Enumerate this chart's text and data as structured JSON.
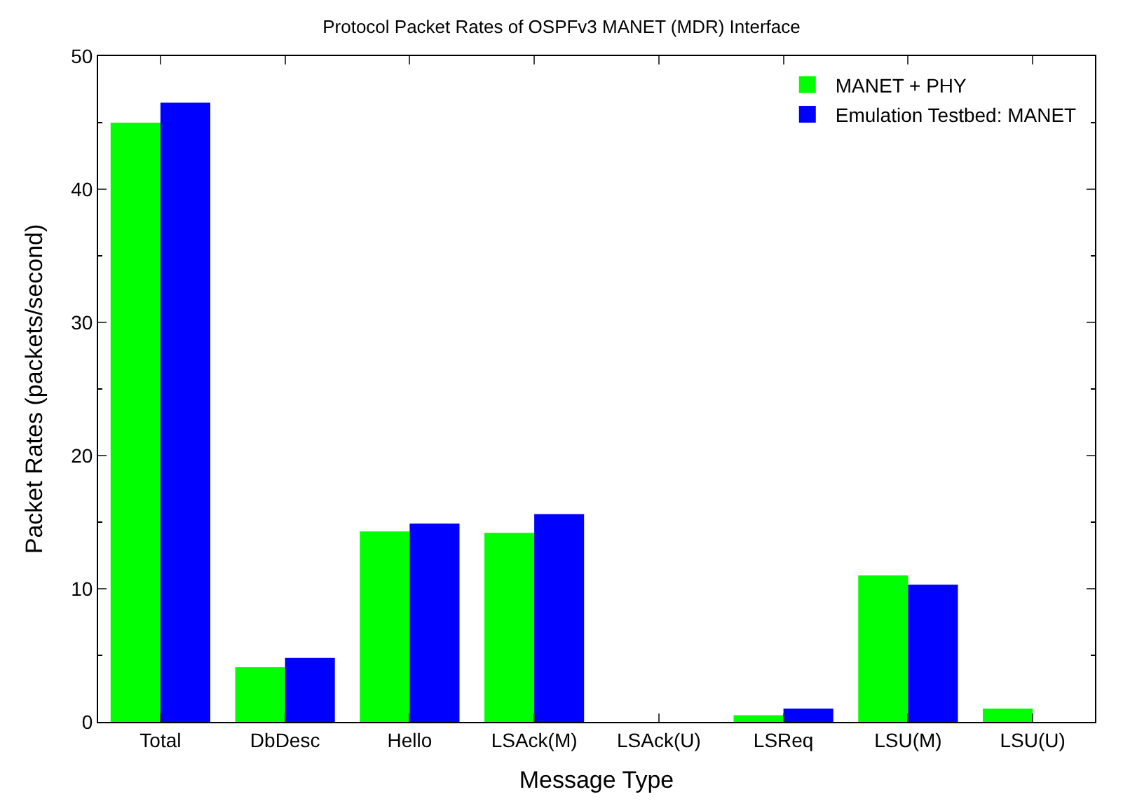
{
  "chart_data": {
    "type": "bar",
    "title": "Protocol Packet Rates of OSPFv3 MANET (MDR) Interface",
    "xlabel": "Message Type",
    "ylabel": "Packet Rates (packets/second)",
    "categories": [
      "Total",
      "DbDesc",
      "Hello",
      "LSAck(M)",
      "LSAck(U)",
      "LSReq",
      "LSU(M)",
      "LSU(U)"
    ],
    "series": [
      {
        "name": "MANET + PHY",
        "color": "#00ff00",
        "values": [
          45.0,
          4.1,
          14.3,
          14.2,
          0,
          0.5,
          11.0,
          1.0
        ]
      },
      {
        "name": "Emulation Testbed: MANET",
        "color": "#0000ff",
        "values": [
          46.5,
          4.8,
          14.9,
          15.6,
          0,
          1.0,
          10.3,
          0
        ]
      }
    ],
    "ylim": [
      0,
      50
    ],
    "yticks": [
      0,
      10,
      20,
      30,
      40,
      50
    ],
    "legend": "top right"
  }
}
